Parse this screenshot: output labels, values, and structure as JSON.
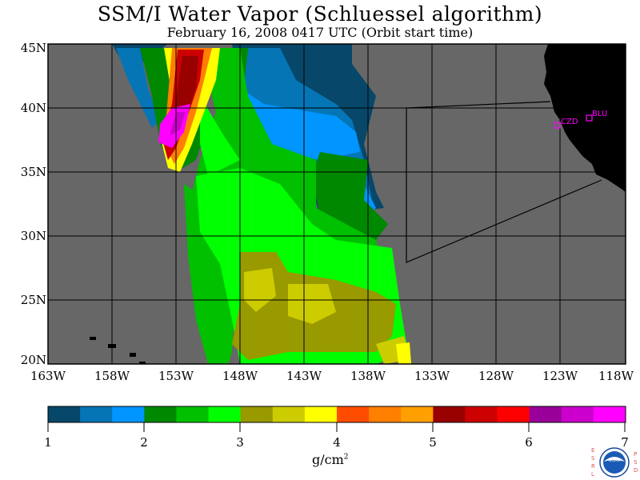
{
  "title": "SSM/I Water Vapor (Schluessel algorithm)",
  "subtitle": "February 16, 2008  0417 UTC  (Orbit start time)",
  "map": {
    "lat_labels": [
      "45N",
      "40N",
      "35N",
      "30N",
      "25N",
      "20N"
    ],
    "lon_labels": [
      "163W",
      "158W",
      "153W",
      "148W",
      "143W",
      "138W",
      "133W",
      "128W",
      "123W",
      "118W"
    ],
    "ocean_color": "#676767",
    "land_color": "#000000",
    "stations": [
      {
        "id": "czd",
        "label": "CZD"
      },
      {
        "id": "blu",
        "label": "BLU"
      }
    ]
  },
  "colorbar": {
    "colors": [
      "#06476a",
      "#0575b6",
      "#0095ff",
      "#008800",
      "#00c000",
      "#00ff00",
      "#999900",
      "#cccc00",
      "#ffff00",
      "#ff4c00",
      "#ff7f00",
      "#ffa000",
      "#990000",
      "#cc0000",
      "#ff0000",
      "#990099",
      "#cc00cc",
      "#ff00ff"
    ],
    "labels": [
      "1",
      "2",
      "3",
      "4",
      "5",
      "6",
      "7"
    ],
    "units": "g/cm",
    "units_sup": "2"
  },
  "logo": {
    "left_letters": "ESRL",
    "right_letters": "PSD",
    "center": "NOAA"
  }
}
